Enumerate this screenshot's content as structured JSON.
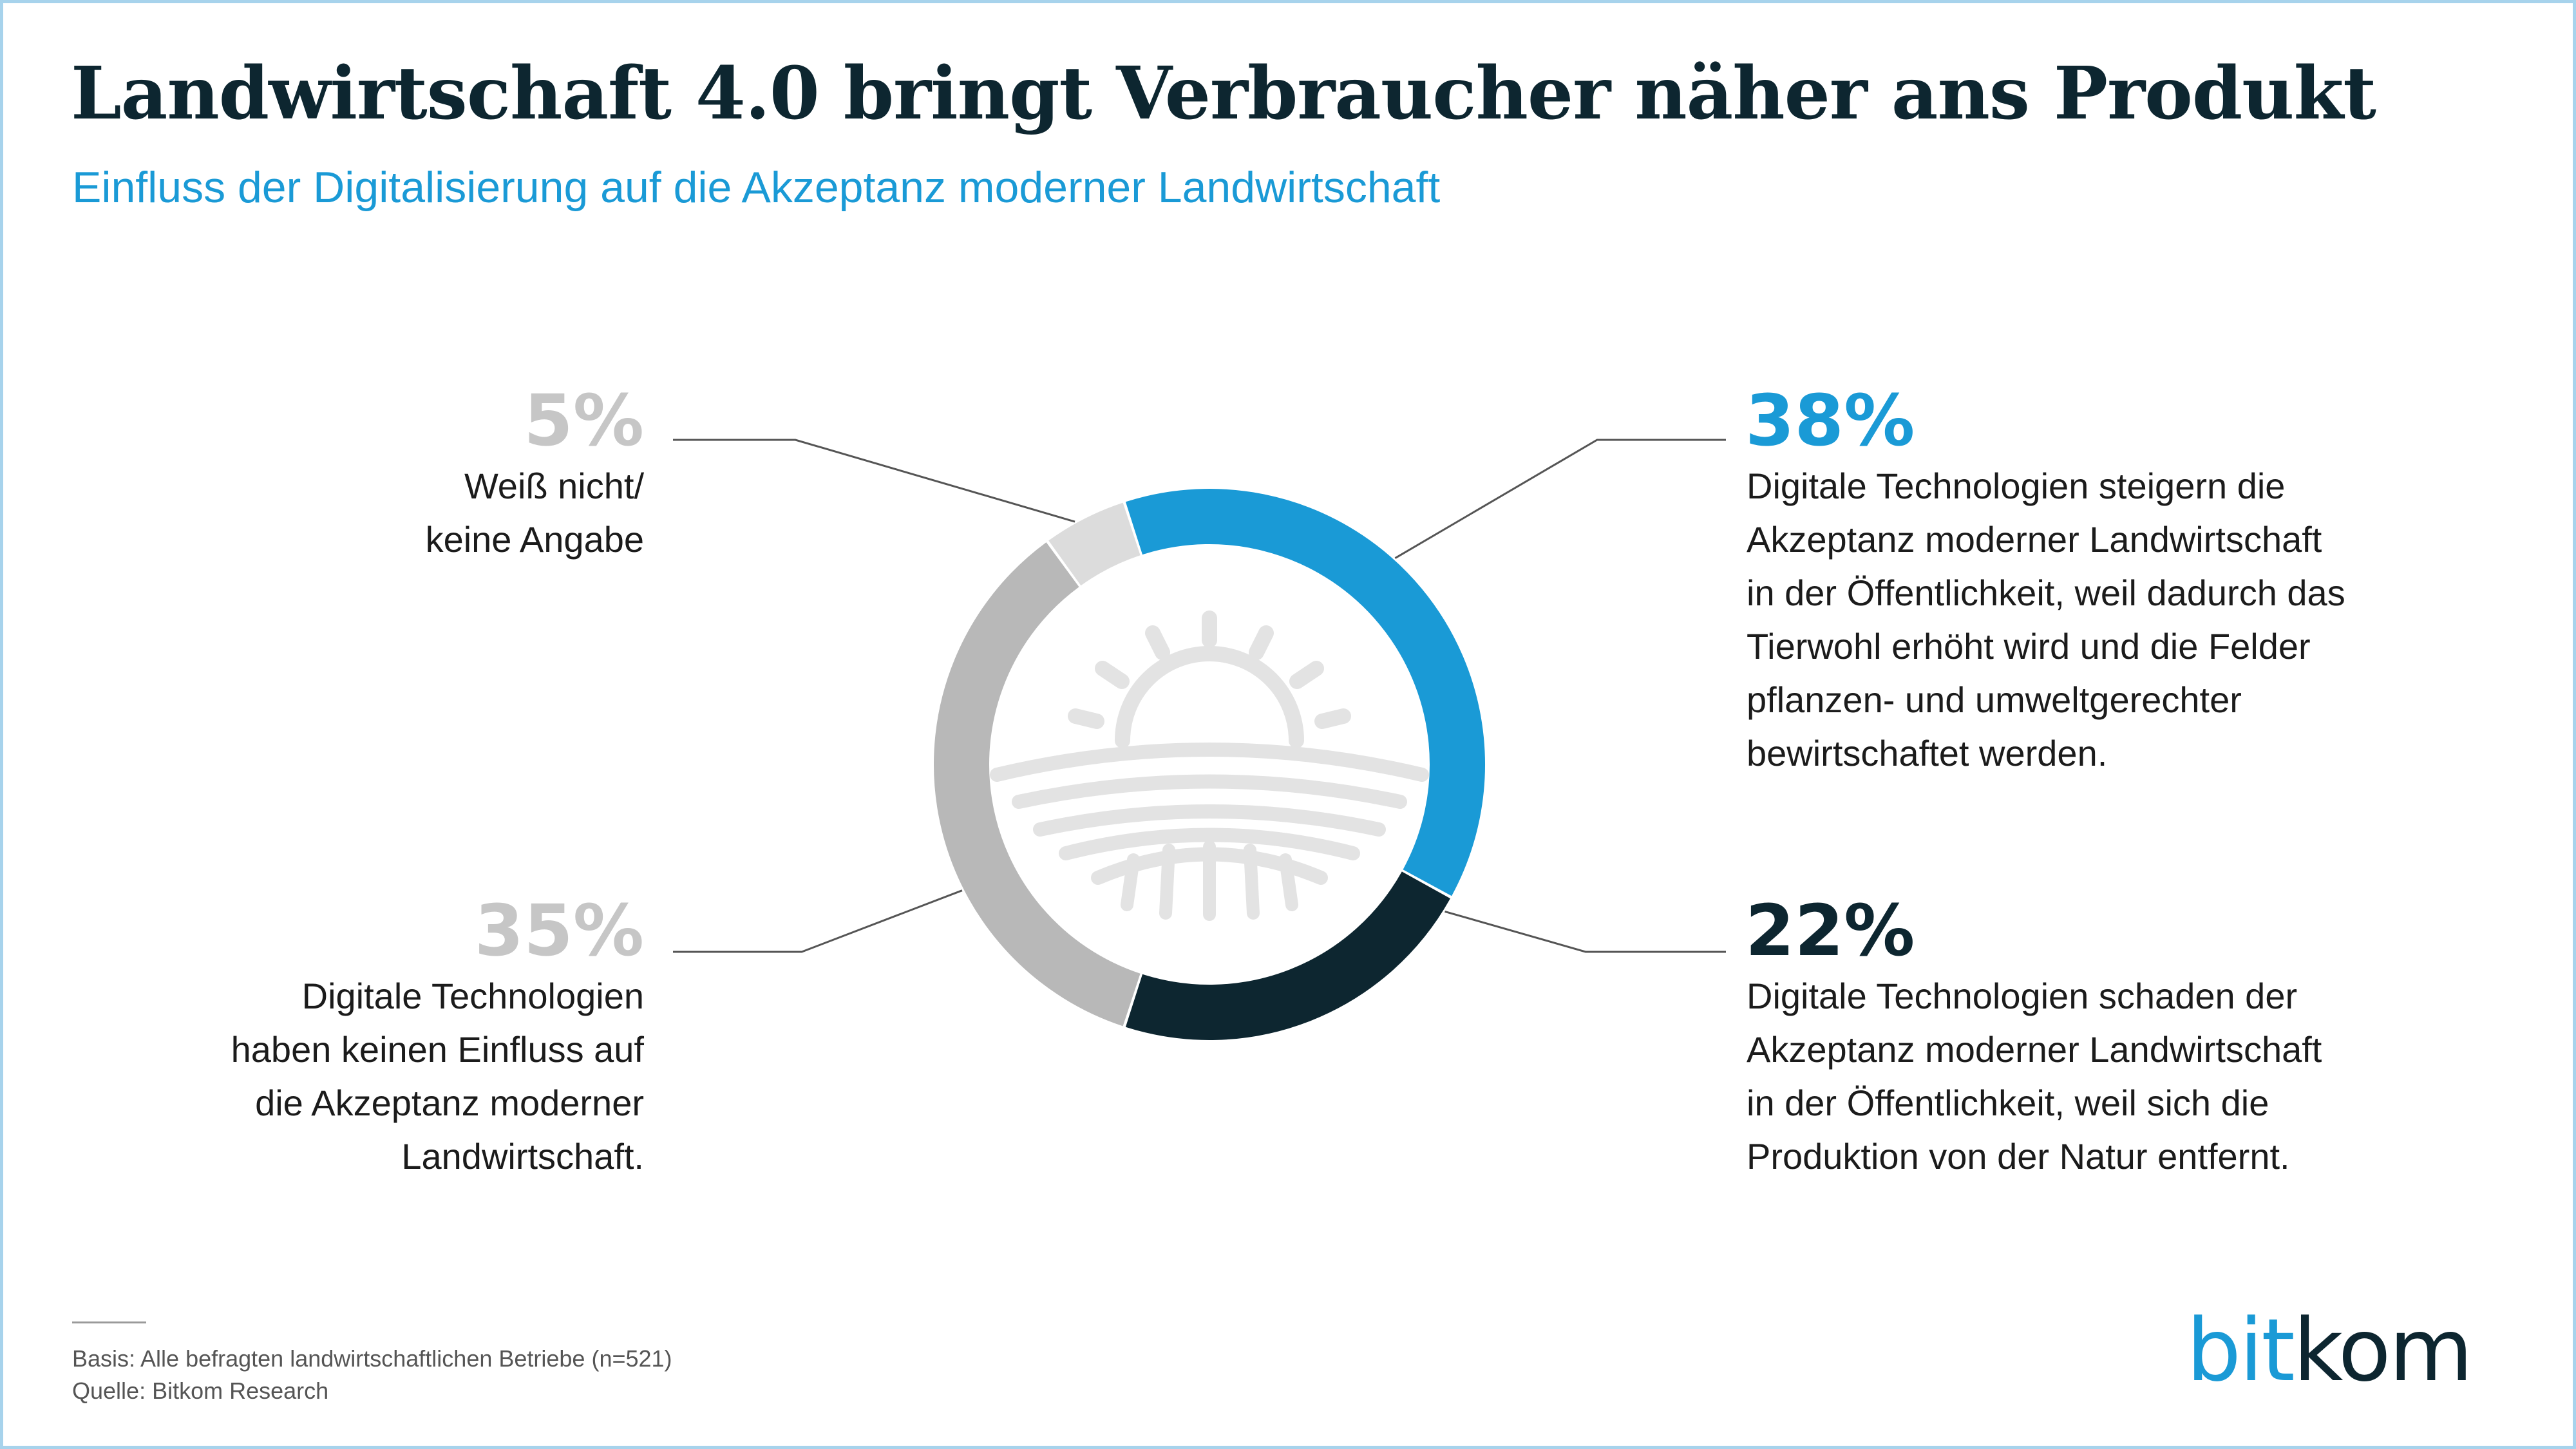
{
  "title": "Landwirtschaft 4.0 bringt Verbraucher näher ans Produkt",
  "subtitle": "Einfluss der Digitalisierung auf die Akzeptanz moderner Landwirtschaft",
  "chart_data": {
    "type": "pie",
    "variant": "donut",
    "slices": [
      {
        "value": 38,
        "label": "38%",
        "color": "#1a9ad6",
        "description": [
          "Digitale Technologien steigern die",
          "Akzeptanz moderner Landwirtschaft",
          "in der Öffentlichkeit, weil dadurch das",
          "Tierwohl erhöht wird und die Felder",
          "pflanzen- und umweltgerechter",
          "bewirtschaftet werden."
        ]
      },
      {
        "value": 22,
        "label": "22%",
        "color": "#0d2630",
        "description": [
          "Digitale Technologien schaden der",
          "Akzeptanz moderner Landwirtschaft",
          "in der Öffentlichkeit, weil sich die",
          "Produktion von der Natur entfernt."
        ]
      },
      {
        "value": 35,
        "label": "35%",
        "color": "#b8b8b8",
        "description": [
          "Digitale Technologien",
          "haben keinen Einfluss auf",
          "die Akzeptanz moderner",
          "Landwirtschaft."
        ]
      },
      {
        "value": 5,
        "label": "5%",
        "color": "#dcdcdc",
        "description": [
          "Weiß nicht/",
          "keine Angabe"
        ]
      }
    ],
    "center_icon": "farm-field-sunrise-icon"
  },
  "footer": {
    "basis": "Basis: Alle befragten landwirtschaftlichen Betriebe (n=521)",
    "source": "Quelle: Bitkom Research"
  },
  "logo": {
    "part1": "bit",
    "part2": "kom"
  },
  "colors": {
    "title": "#0d2630",
    "accent": "#1a9ad6",
    "label_gray": "#c6c6c6",
    "frame": "#a7d3ec"
  }
}
